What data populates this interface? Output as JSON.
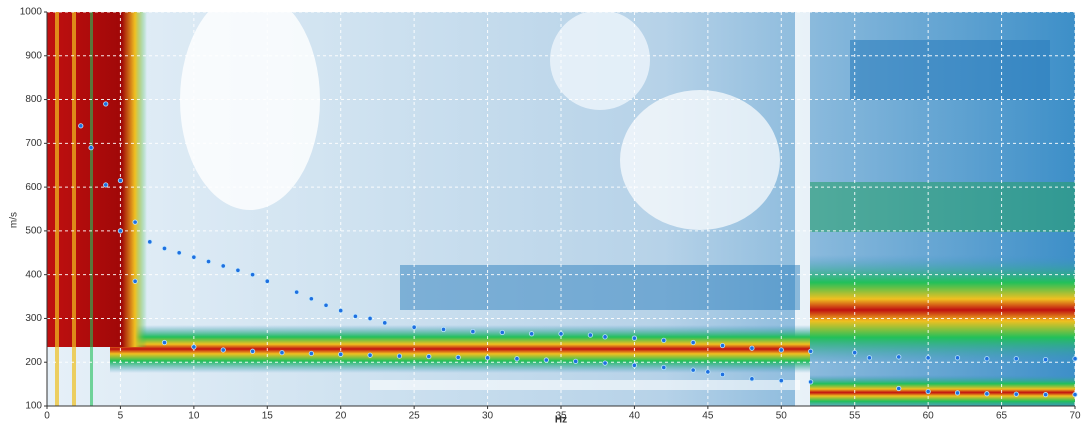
{
  "chart_data": {
    "type": "scatter",
    "xlabel": "Hz",
    "ylabel": "m/s",
    "xlim": [
      0,
      70
    ],
    "ylim": [
      100,
      1000
    ],
    "xticks": [
      0,
      5,
      10,
      15,
      20,
      25,
      30,
      35,
      40,
      45,
      50,
      55,
      60,
      65,
      70
    ],
    "yticks": [
      100,
      200,
      300,
      400,
      500,
      600,
      700,
      800,
      900,
      1000
    ],
    "grid": true,
    "color": "#1e6fe0",
    "x": [
      2.3,
      3,
      4,
      4,
      5,
      5,
      6,
      6,
      7,
      8,
      9,
      10,
      11,
      12,
      13,
      14,
      15,
      17,
      18,
      19,
      20,
      21,
      22,
      23,
      25,
      27,
      29,
      31,
      33,
      35,
      37,
      38,
      40,
      42,
      44,
      46,
      48,
      50,
      52,
      55,
      8,
      10,
      12,
      14,
      16,
      18,
      20,
      22,
      24,
      26,
      28,
      30,
      32,
      34,
      36,
      38,
      40,
      42,
      44,
      45,
      46,
      48,
      50,
      52,
      56,
      58,
      60,
      62,
      64,
      66,
      68,
      70,
      58,
      60,
      62,
      64,
      66,
      68,
      70
    ],
    "values": [
      740,
      690,
      790,
      605,
      615,
      500,
      520,
      385,
      475,
      460,
      450,
      440,
      430,
      420,
      410,
      400,
      385,
      360,
      345,
      330,
      318,
      305,
      300,
      290,
      280,
      275,
      270,
      268,
      265,
      265,
      262,
      258,
      255,
      250,
      245,
      238,
      232,
      228,
      225,
      222,
      245,
      235,
      228,
      225,
      222,
      220,
      218,
      216,
      214,
      213,
      211,
      210,
      208,
      205,
      202,
      198,
      193,
      188,
      182,
      178,
      172,
      162,
      158,
      155,
      210,
      212,
      210,
      210,
      208,
      208,
      206,
      208,
      140,
      133,
      130,
      128,
      127,
      126,
      126
    ]
  }
}
